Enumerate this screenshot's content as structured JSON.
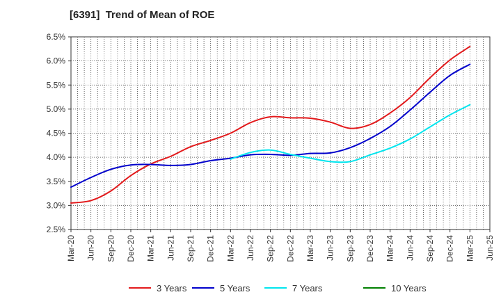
{
  "chart_data": {
    "type": "line",
    "title": "[6391]  Trend of Mean of ROE",
    "xlabel": "",
    "ylabel": "",
    "ylim": [
      2.5,
      6.5
    ],
    "y_ticks": [
      "2.5%",
      "3.0%",
      "3.5%",
      "4.0%",
      "4.5%",
      "5.0%",
      "5.5%",
      "6.0%",
      "6.5%"
    ],
    "x_ticks": [
      "Mar-20",
      "Jun-20",
      "Sep-20",
      "Dec-20",
      "Mar-21",
      "Jun-21",
      "Sep-21",
      "Dec-21",
      "Mar-22",
      "Jun-22",
      "Sep-22",
      "Dec-22",
      "Mar-23",
      "Jun-23",
      "Sep-23",
      "Dec-23",
      "Mar-24",
      "Jun-24",
      "Sep-24",
      "Dec-24",
      "Mar-25",
      "Jun-25"
    ],
    "grid": true,
    "legend_position": "bottom",
    "series": [
      {
        "name": "3 Years",
        "color": "#e31a1c",
        "x": [
          "Mar-20",
          "Jun-20",
          "Sep-20",
          "Dec-20",
          "Mar-21",
          "Jun-21",
          "Sep-21",
          "Dec-21",
          "Mar-22",
          "Jun-22",
          "Sep-22",
          "Dec-22",
          "Mar-23",
          "Jun-23",
          "Sep-23",
          "Dec-23",
          "Mar-24",
          "Jun-24",
          "Sep-24",
          "Dec-24",
          "Mar-25"
        ],
        "values": [
          3.05,
          3.1,
          3.3,
          3.62,
          3.86,
          4.02,
          4.22,
          4.35,
          4.5,
          4.72,
          4.84,
          4.82,
          4.81,
          4.73,
          4.6,
          4.68,
          4.92,
          5.24,
          5.65,
          6.02,
          6.3
        ]
      },
      {
        "name": "5 Years",
        "color": "#0000cc",
        "x": [
          "Mar-20",
          "Jun-20",
          "Sep-20",
          "Dec-20",
          "Mar-21",
          "Jun-21",
          "Sep-21",
          "Dec-21",
          "Mar-22",
          "Jun-22",
          "Sep-22",
          "Dec-22",
          "Mar-23",
          "Jun-23",
          "Sep-23",
          "Dec-23",
          "Mar-24",
          "Jun-24",
          "Sep-24",
          "Dec-24",
          "Mar-25"
        ],
        "values": [
          3.38,
          3.58,
          3.75,
          3.84,
          3.85,
          3.83,
          3.85,
          3.93,
          3.98,
          4.05,
          4.06,
          4.04,
          4.08,
          4.09,
          4.2,
          4.39,
          4.64,
          4.98,
          5.35,
          5.7,
          5.93
        ]
      },
      {
        "name": "7 Years",
        "color": "#00e5ee",
        "x": [
          "Mar-22",
          "Jun-22",
          "Sep-22",
          "Dec-22",
          "Mar-23",
          "Jun-23",
          "Sep-23",
          "Dec-23",
          "Mar-24",
          "Jun-24",
          "Sep-24",
          "Dec-24",
          "Mar-25"
        ],
        "values": [
          3.96,
          4.1,
          4.15,
          4.06,
          3.98,
          3.91,
          3.91,
          4.05,
          4.19,
          4.38,
          4.63,
          4.88,
          5.09
        ]
      },
      {
        "name": "10 Years",
        "color": "#008000",
        "x": [],
        "values": []
      }
    ]
  }
}
